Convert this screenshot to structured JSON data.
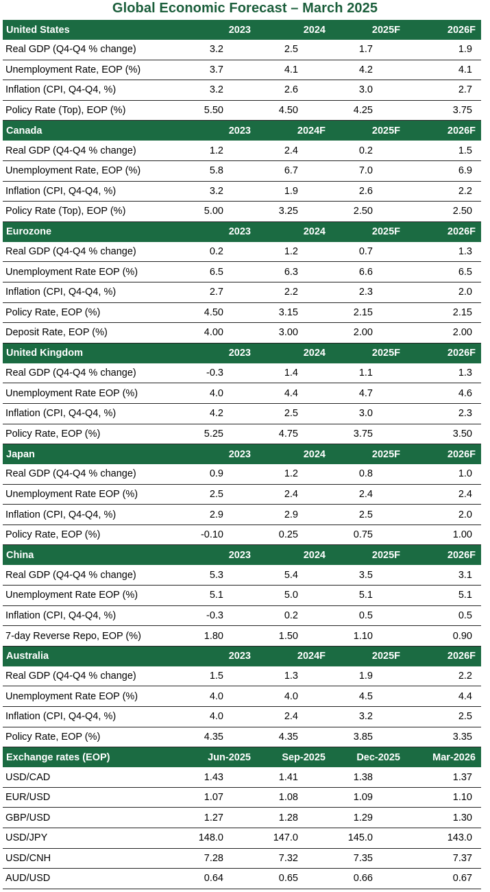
{
  "title": "Global Economic Forecast – March 2025",
  "colors": {
    "header_bg": "#1b6b42",
    "title": "#1b5e3b"
  },
  "sections": [
    {
      "name": "United States",
      "headers": [
        "2023",
        "2024",
        "2025F",
        "2026F"
      ],
      "rows": [
        {
          "label": "Real GDP (Q4-Q4 % change)",
          "values": [
            "3.2",
            "2.5",
            "1.7",
            "1.9"
          ]
        },
        {
          "label": "Unemployment Rate, EOP (%)",
          "values": [
            "3.7",
            "4.1",
            "4.2",
            "4.1"
          ]
        },
        {
          "label": "Inflation (CPI, Q4-Q4, %)",
          "values": [
            "3.2",
            "2.6",
            "3.0",
            "2.7"
          ]
        },
        {
          "label": "Policy Rate (Top), EOP (%)",
          "values": [
            "5.50",
            "4.50",
            "4.25",
            "3.75"
          ]
        }
      ]
    },
    {
      "name": "Canada",
      "headers": [
        "2023",
        "2024F",
        "2025F",
        "2026F"
      ],
      "rows": [
        {
          "label": "Real GDP (Q4-Q4 % change)",
          "values": [
            "1.2",
            "2.4",
            "0.2",
            "1.5"
          ]
        },
        {
          "label": "Unemployment Rate, EOP (%)",
          "values": [
            "5.8",
            "6.7",
            "7.0",
            "6.9"
          ]
        },
        {
          "label": "Inflation (CPI, Q4-Q4, %)",
          "values": [
            "3.2",
            "1.9",
            "2.6",
            "2.2"
          ]
        },
        {
          "label": "Policy Rate (Top), EOP (%)",
          "values": [
            "5.00",
            "3.25",
            "2.50",
            "2.50"
          ]
        }
      ]
    },
    {
      "name": "Eurozone",
      "headers": [
        "2023",
        "2024",
        "2025F",
        "2026F"
      ],
      "rows": [
        {
          "label": "Real GDP (Q4-Q4 % change)",
          "values": [
            "0.2",
            "1.2",
            "0.7",
            "1.3"
          ]
        },
        {
          "label": "Unemployment Rate EOP (%)",
          "values": [
            "6.5",
            "6.3",
            "6.6",
            "6.5"
          ]
        },
        {
          "label": "Inflation (CPI, Q4-Q4, %)",
          "values": [
            "2.7",
            "2.2",
            "2.3",
            "2.0"
          ]
        },
        {
          "label": "Policy Rate, EOP (%)",
          "values": [
            "4.50",
            "3.15",
            "2.15",
            "2.15"
          ]
        },
        {
          "label": "Deposit Rate, EOP (%)",
          "values": [
            "4.00",
            "3.00",
            "2.00",
            "2.00"
          ]
        }
      ]
    },
    {
      "name": "United Kingdom",
      "headers": [
        "2023",
        "2024",
        "2025F",
        "2026F"
      ],
      "rows": [
        {
          "label": "Real GDP (Q4-Q4 % change)",
          "values": [
            "-0.3",
            "1.4",
            "1.1",
            "1.3"
          ]
        },
        {
          "label": "Unemployment Rate EOP (%)",
          "values": [
            "4.0",
            "4.4",
            "4.7",
            "4.6"
          ]
        },
        {
          "label": "Inflation (CPI, Q4-Q4, %)",
          "values": [
            "4.2",
            "2.5",
            "3.0",
            "2.3"
          ]
        },
        {
          "label": "Policy Rate, EOP (%)",
          "values": [
            "5.25",
            "4.75",
            "3.75",
            "3.50"
          ]
        }
      ]
    },
    {
      "name": "Japan",
      "headers": [
        "2023",
        "2024",
        "2025F",
        "2026F"
      ],
      "rows": [
        {
          "label": "Real GDP (Q4-Q4 % change)",
          "values": [
            "0.9",
            "1.2",
            "0.8",
            "1.0"
          ]
        },
        {
          "label": "Unemployment Rate EOP (%)",
          "values": [
            "2.5",
            "2.4",
            "2.4",
            "2.4"
          ]
        },
        {
          "label": "Inflation (CPI, Q4-Q4, %)",
          "values": [
            "2.9",
            "2.9",
            "2.5",
            "2.0"
          ]
        },
        {
          "label": "Policy Rate, EOP (%)",
          "values": [
            "-0.10",
            "0.25",
            "0.75",
            "1.00"
          ]
        }
      ]
    },
    {
      "name": "China",
      "headers": [
        "2023",
        "2024",
        "2025F",
        "2026F"
      ],
      "rows": [
        {
          "label": "Real GDP (Q4-Q4 % change)",
          "values": [
            "5.3",
            "5.4",
            "3.5",
            "3.1"
          ]
        },
        {
          "label": "Unemployment Rate EOP (%)",
          "values": [
            "5.1",
            "5.0",
            "5.1",
            "5.1"
          ]
        },
        {
          "label": "Inflation (CPI, Q4-Q4, %)",
          "values": [
            "-0.3",
            "0.2",
            "0.5",
            "0.5"
          ]
        },
        {
          "label": "7-day Reverse Repo, EOP (%)",
          "values": [
            "1.80",
            "1.50",
            "1.10",
            "0.90"
          ]
        }
      ]
    },
    {
      "name": "Australia",
      "headers": [
        "2023",
        "2024F",
        "2025F",
        "2026F"
      ],
      "rows": [
        {
          "label": "Real GDP (Q4-Q4 % change)",
          "values": [
            "1.5",
            "1.3",
            "1.9",
            "2.2"
          ]
        },
        {
          "label": "Unemployment Rate EOP (%)",
          "values": [
            "4.0",
            "4.0",
            "4.5",
            "4.4"
          ]
        },
        {
          "label": "Inflation (CPI, Q4-Q4, %)",
          "values": [
            "4.0",
            "2.4",
            "3.2",
            "2.5"
          ]
        },
        {
          "label": "Policy Rate, EOP (%)",
          "values": [
            "4.35",
            "4.35",
            "3.85",
            "3.35"
          ]
        }
      ]
    },
    {
      "name": "Exchange rates (EOP)",
      "headers": [
        "Jun-2025",
        "Sep-2025",
        "Dec-2025",
        "Mar-2026"
      ],
      "rows": [
        {
          "label": "USD/CAD",
          "values": [
            "1.43",
            "1.41",
            "1.38",
            "1.37"
          ]
        },
        {
          "label": "EUR/USD",
          "values": [
            "1.07",
            "1.08",
            "1.09",
            "1.10"
          ]
        },
        {
          "label": "GBP/USD",
          "values": [
            "1.27",
            "1.28",
            "1.29",
            "1.30"
          ]
        },
        {
          "label": "USD/JPY",
          "values": [
            "148.0",
            "147.0",
            "145.0",
            "143.0"
          ]
        },
        {
          "label": "USD/CNH",
          "values": [
            "7.28",
            "7.32",
            "7.35",
            "7.37"
          ]
        },
        {
          "label": "AUD/USD",
          "values": [
            "0.64",
            "0.65",
            "0.66",
            "0.67"
          ]
        }
      ]
    }
  ]
}
